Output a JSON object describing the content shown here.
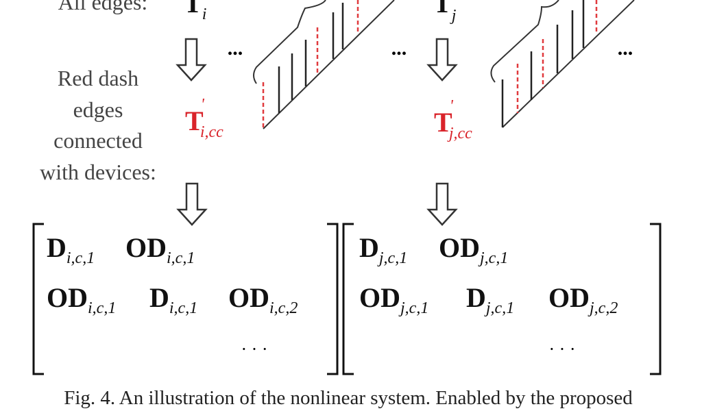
{
  "labels": {
    "all_edges": "All edges:",
    "red_dash_lines": [
      "Red dash",
      "edges",
      "connected",
      "with devices:"
    ]
  },
  "symbols": {
    "t_i": {
      "main": "T",
      "sub": "i"
    },
    "t_j": {
      "main": "T",
      "sub": "j"
    },
    "t_i_cc": {
      "main": "T",
      "prime": "'",
      "sub": "i,cc"
    },
    "t_j_cc": {
      "main": "T",
      "prime": "'",
      "sub": "j,cc"
    },
    "ellipsis": "..."
  },
  "matrices": [
    {
      "row1": [
        {
          "main": "D",
          "sub": "i,c,1"
        },
        {
          "main": "OD",
          "sub": "i,c,1"
        }
      ],
      "row2": [
        {
          "main": "OD",
          "sub": "i,c,1"
        },
        {
          "main": "D",
          "sub": "i,c,1"
        },
        {
          "main": "OD",
          "sub": "i,c,2"
        }
      ],
      "dots": "· · ·"
    },
    {
      "row1": [
        {
          "main": "D",
          "sub": "j,c,1"
        },
        {
          "main": "OD",
          "sub": "j,c,1"
        }
      ],
      "row2": [
        {
          "main": "OD",
          "sub": "j,c,1"
        },
        {
          "main": "D",
          "sub": "j,c,1"
        },
        {
          "main": "OD",
          "sub": "j,c,2"
        }
      ],
      "dots": "· · ·"
    }
  ],
  "caption": "Fig. 4. An illustration of the nonlinear system. Enabled by the proposed",
  "colors": {
    "highlight": "#d9232a",
    "text": "#111111"
  }
}
